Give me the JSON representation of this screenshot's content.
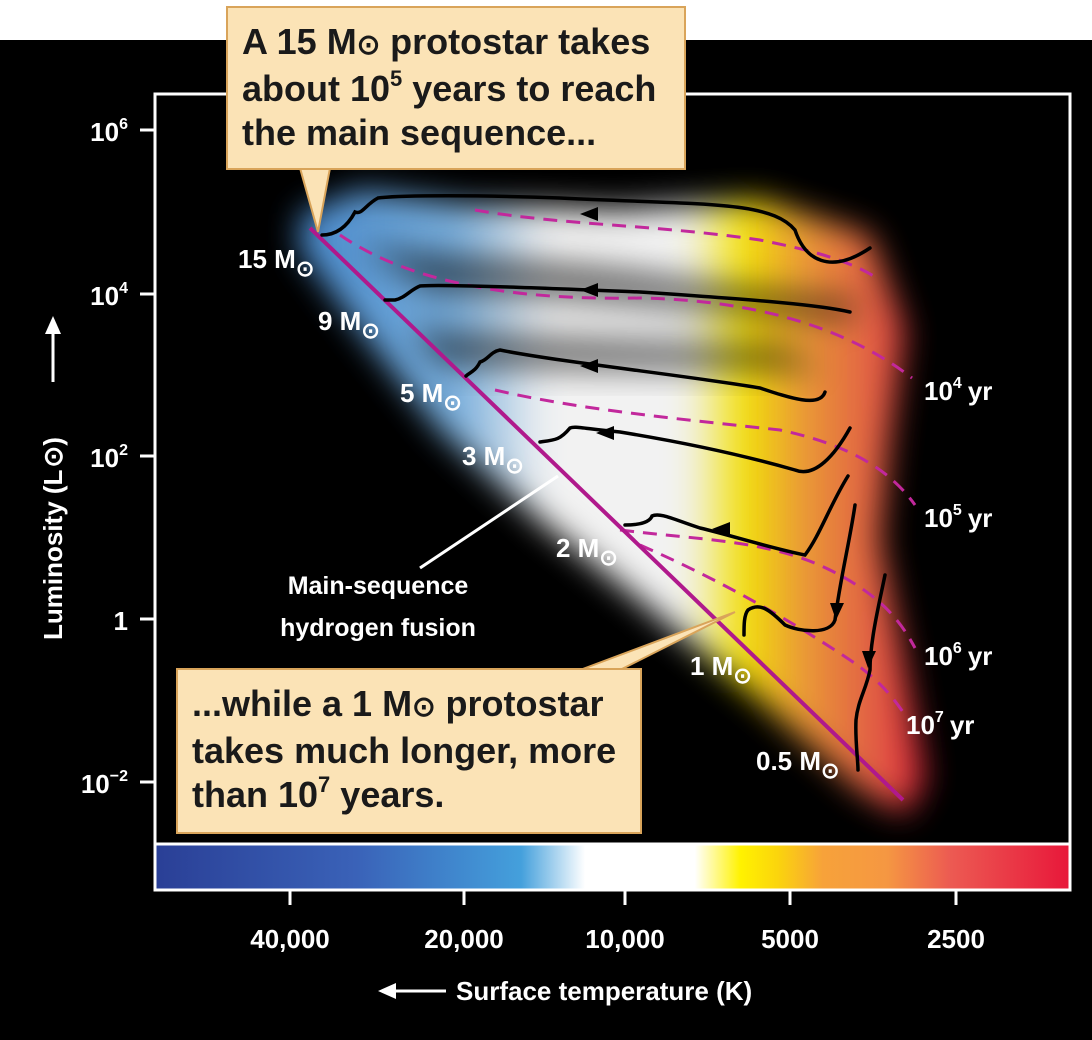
{
  "callouts": {
    "top": {
      "line1": "A 15 M",
      "line1b": " protostar takes",
      "line2a": "about 10",
      "line2sup": "5",
      "line2b": " years to reach",
      "line3": "the main sequence..."
    },
    "bottom": {
      "line1a": "...while a 1 M",
      "line1b": " protostar",
      "line2": "takes much longer, more",
      "line3a": "than 10",
      "line3sup": "7",
      "line3b": " years."
    }
  },
  "axes": {
    "y_label": "Luminosity (L",
    "y_label_end": ")",
    "y_ticks": [
      {
        "base": "10",
        "exp": "6"
      },
      {
        "base": "10",
        "exp": "4"
      },
      {
        "base": "10",
        "exp": "2"
      },
      {
        "base": "1",
        "exp": ""
      },
      {
        "base": "10",
        "exp": "−2"
      }
    ],
    "x_label": "Surface temperature (K)",
    "x_ticks": [
      "40,000",
      "20,000",
      "10,000",
      "5000",
      "2500"
    ]
  },
  "mass_labels": [
    "15 M",
    "9 M",
    "5 M",
    "3 M",
    "2 M",
    "1 M",
    "0.5 M"
  ],
  "isochrones": [
    {
      "base": "10",
      "exp": "4",
      "unit": "yr"
    },
    {
      "base": "10",
      "exp": "5",
      "unit": "yr"
    },
    {
      "base": "10",
      "exp": "6",
      "unit": "yr"
    },
    {
      "base": "10",
      "exp": "7",
      "unit": "yr"
    }
  ],
  "main_sequence_label": [
    "Main-sequence",
    "hydrogen fusion"
  ],
  "colors": {
    "background": "#000000",
    "main_sequence": "#b0198c",
    "isochrone": "#c2289c",
    "track": "#000000",
    "callout_fill": "#fbe3b6",
    "callout_border": "#d9a45a"
  }
}
